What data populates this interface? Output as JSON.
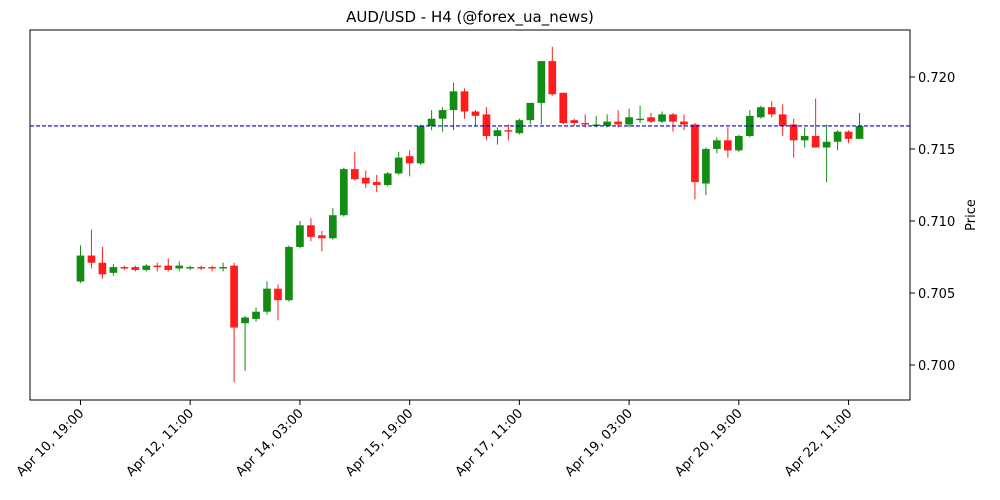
{
  "chart_data": {
    "type": "candlestick",
    "title": "AUD/USD - H4 (@forex_ua_news)",
    "y_label": "Price",
    "categories": [
      "Apr 10, 19:00",
      null,
      null,
      null,
      null,
      null,
      null,
      null,
      null,
      null,
      "Apr 12, 11:00",
      null,
      null,
      null,
      null,
      null,
      null,
      null,
      null,
      null,
      "Apr 14, 03:00",
      null,
      null,
      null,
      null,
      null,
      null,
      null,
      null,
      null,
      "Apr 15, 19:00",
      null,
      null,
      null,
      null,
      null,
      null,
      null,
      null,
      null,
      "Apr 17, 11:00",
      null,
      null,
      null,
      null,
      null,
      null,
      null,
      null,
      null,
      "Apr 19, 03:00",
      null,
      null,
      null,
      null,
      null,
      null,
      null,
      null,
      null,
      "Apr 20, 19:00",
      null,
      null,
      null,
      null,
      null,
      null,
      null,
      null,
      null,
      "Apr 22, 11:00",
      null
    ],
    "open": [
      0.7058,
      0.7076,
      0.7071,
      0.7064,
      0.7068,
      0.7068,
      0.7066,
      0.7069,
      0.7069,
      0.7067,
      0.7067,
      0.7068,
      0.7068,
      0.7067,
      0.7069,
      0.7029,
      0.7032,
      0.7037,
      0.7053,
      0.7045,
      0.7082,
      0.7097,
      0.709,
      0.7088,
      0.7104,
      0.7136,
      0.713,
      0.7127,
      0.7125,
      0.7133,
      0.7145,
      0.714,
      0.7166,
      0.7171,
      0.7177,
      0.719,
      0.7176,
      0.7174,
      0.7159,
      0.7163,
      0.7161,
      0.717,
      0.7182,
      0.7211,
      0.7189,
      0.717,
      0.7168,
      0.7166,
      0.7166,
      0.7169,
      0.7167,
      0.717,
      0.7172,
      0.7169,
      0.7174,
      0.7169,
      0.7167,
      0.7126,
      0.715,
      0.7156,
      0.7149,
      0.7159,
      0.7172,
      0.7179,
      0.7174,
      0.7167,
      0.7156,
      0.7159,
      0.7151,
      0.7155,
      0.7162,
      0.7157
    ],
    "high": [
      0.7083,
      0.7094,
      0.7082,
      0.707,
      0.7069,
      0.7069,
      0.707,
      0.7071,
      0.7074,
      0.7072,
      0.7069,
      0.7069,
      0.7069,
      0.7071,
      0.7071,
      0.7034,
      0.704,
      0.7058,
      0.7056,
      0.7083,
      0.71,
      0.7102,
      0.7093,
      0.7109,
      0.7137,
      0.7148,
      0.7135,
      0.7132,
      0.7134,
      0.7148,
      0.7149,
      0.7167,
      0.7177,
      0.7179,
      0.7196,
      0.7192,
      0.7177,
      0.7179,
      0.7165,
      0.7167,
      0.7171,
      0.7182,
      0.7211,
      0.7221,
      0.7189,
      0.7171,
      0.7174,
      0.7173,
      0.7174,
      0.7177,
      0.7178,
      0.718,
      0.7175,
      0.7176,
      0.7175,
      0.7174,
      0.7168,
      0.7151,
      0.7158,
      0.7165,
      0.716,
      0.7177,
      0.718,
      0.7183,
      0.7181,
      0.7171,
      0.7165,
      0.7185,
      0.7167,
      0.7163,
      0.7163,
      0.7175
    ],
    "low": [
      0.7057,
      0.7067,
      0.706,
      0.7062,
      0.7066,
      0.7065,
      0.7065,
      0.7065,
      0.7065,
      0.7065,
      0.7066,
      0.7066,
      0.7065,
      0.7065,
      0.6988,
      0.6996,
      0.703,
      0.7035,
      0.7031,
      0.7044,
      0.7081,
      0.7086,
      0.7079,
      0.7087,
      0.7103,
      0.7128,
      0.7123,
      0.712,
      0.7124,
      0.7132,
      0.7131,
      0.7139,
      0.7163,
      0.7162,
      0.7163,
      0.7171,
      0.7166,
      0.7156,
      0.7153,
      0.7156,
      0.716,
      0.7167,
      0.7167,
      0.7187,
      0.7167,
      0.7166,
      0.7165,
      0.7165,
      0.7165,
      0.7165,
      0.7165,
      0.7168,
      0.7168,
      0.7168,
      0.7162,
      0.7163,
      0.7115,
      0.7118,
      0.7147,
      0.7144,
      0.7148,
      0.7158,
      0.7171,
      0.7172,
      0.7159,
      0.7144,
      0.7151,
      0.7151,
      0.7127,
      0.7149,
      0.7154,
      0.7157
    ],
    "close": [
      0.7076,
      0.7071,
      0.7063,
      0.7068,
      0.7067,
      0.7066,
      0.7069,
      0.7068,
      0.7066,
      0.7069,
      0.7068,
      0.7067,
      0.7067,
      0.7068,
      0.7026,
      0.7033,
      0.7037,
      0.7053,
      0.7045,
      0.7082,
      0.7097,
      0.7089,
      0.7088,
      0.7104,
      0.7136,
      0.7129,
      0.7126,
      0.7125,
      0.7133,
      0.7144,
      0.714,
      0.7166,
      0.7171,
      0.7177,
      0.719,
      0.7176,
      0.7173,
      0.7159,
      0.7163,
      0.7162,
      0.717,
      0.7182,
      0.7211,
      0.7188,
      0.7168,
      0.7168,
      0.7167,
      0.7167,
      0.7169,
      0.7167,
      0.7172,
      0.7171,
      0.7169,
      0.7174,
      0.7169,
      0.7167,
      0.7127,
      0.715,
      0.7156,
      0.7149,
      0.7159,
      0.7173,
      0.7179,
      0.7174,
      0.7166,
      0.7156,
      0.7159,
      0.7151,
      0.7155,
      0.7162,
      0.7157,
      0.7166
    ],
    "up_color": "#128c12",
    "down_color": "#ff1c1c",
    "hline": {
      "value": 0.7166,
      "color": "#0000cc",
      "style": "dashed"
    },
    "xlim": [
      -4.6,
      75.6
    ],
    "ylim": [
      0.69757,
      0.72326
    ],
    "yticks": [
      {
        "value": 0.7,
        "label": "0.700"
      },
      {
        "value": 0.705,
        "label": "0.705"
      },
      {
        "value": 0.71,
        "label": "0.710"
      },
      {
        "value": 0.715,
        "label": "0.715"
      },
      {
        "value": 0.72,
        "label": "0.720"
      }
    ]
  }
}
